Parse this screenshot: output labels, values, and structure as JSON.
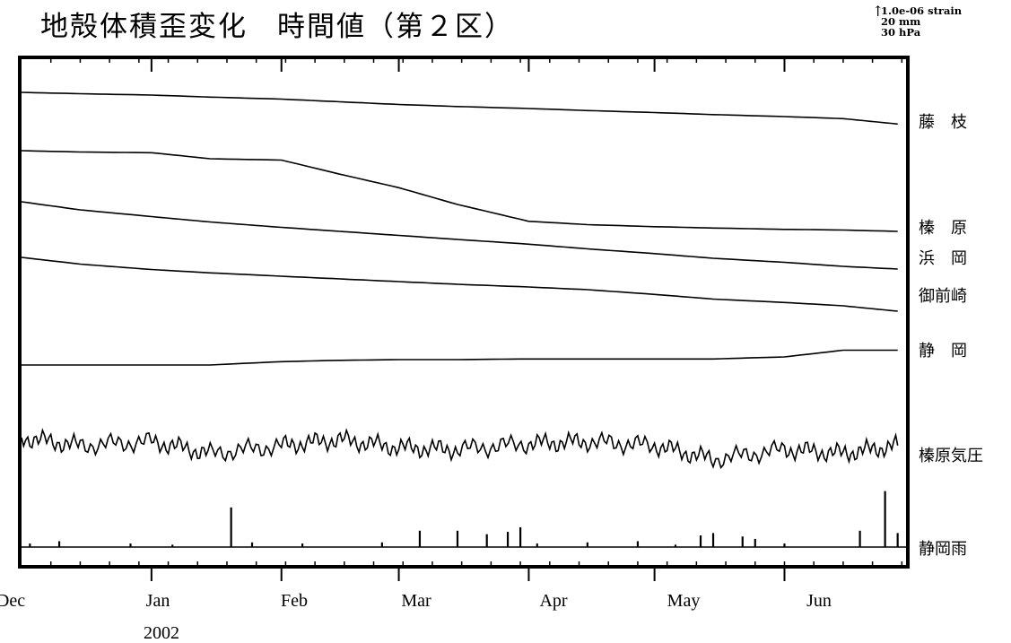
{
  "chart_data": {
    "type": "line",
    "title": "地殻体積歪変化　時間値（第２区）",
    "scale_legend": [
      "1.0e-06 strain",
      "20 mm",
      "30 hPa"
    ],
    "x_tick_labels": [
      "Dec",
      "Jan",
      "Feb",
      "Mar",
      "Apr",
      "May",
      "Jun"
    ],
    "x_sub_label": "2002",
    "x": [
      "2001-12-01",
      "2001-12-15",
      "2002-01-01",
      "2002-01-15",
      "2002-02-01",
      "2002-02-15",
      "2002-03-01",
      "2002-03-15",
      "2002-04-01",
      "2002-04-15",
      "2002-05-01",
      "2002-05-15",
      "2002-06-01",
      "2002-06-15",
      "2002-06-28"
    ],
    "series": [
      {
        "name": "藤　枝",
        "values": [
          0.0,
          -0.02,
          -0.04,
          -0.07,
          -0.1,
          -0.14,
          -0.18,
          -0.21,
          -0.24,
          -0.27,
          -0.3,
          -0.33,
          -0.36,
          -0.39,
          -0.47
        ]
      },
      {
        "name": "榛　原",
        "values": [
          0.0,
          -0.02,
          -0.03,
          -0.12,
          -0.14,
          -0.35,
          -0.55,
          -0.8,
          -1.05,
          -1.1,
          -1.13,
          -1.15,
          -1.17,
          -1.18,
          -1.2
        ]
      },
      {
        "name": "浜　岡",
        "values": [
          0.0,
          -0.12,
          -0.22,
          -0.3,
          -0.38,
          -0.44,
          -0.5,
          -0.56,
          -0.63,
          -0.7,
          -0.77,
          -0.84,
          -0.9,
          -0.96,
          -1.0
        ]
      },
      {
        "name": "御前崎",
        "values": [
          0.0,
          -0.1,
          -0.18,
          -0.23,
          -0.28,
          -0.32,
          -0.36,
          -0.4,
          -0.44,
          -0.48,
          -0.55,
          -0.62,
          -0.67,
          -0.72,
          -0.8
        ]
      },
      {
        "name": "静　岡",
        "values": [
          0.0,
          0.0,
          0.0,
          0.0,
          0.05,
          0.07,
          0.08,
          0.08,
          0.09,
          0.09,
          0.09,
          0.09,
          0.12,
          0.22,
          0.22
        ]
      },
      {
        "name": "榛原気圧",
        "values": [
          1014,
          1010,
          1012,
          1006,
          1010,
          1013,
          1009,
          1008,
          1011,
          1012,
          1010,
          1003,
          1008,
          1006,
          1010
        ]
      }
    ],
    "rain_series": {
      "name": "静岡雨",
      "events": [
        {
          "x": "2001-12-03",
          "mm": 3
        },
        {
          "x": "2001-12-10",
          "mm": 5
        },
        {
          "x": "2001-12-27",
          "mm": 3
        },
        {
          "x": "2002-01-06",
          "mm": 2
        },
        {
          "x": "2002-01-20",
          "mm": 34
        },
        {
          "x": "2002-01-25",
          "mm": 4
        },
        {
          "x": "2002-02-06",
          "mm": 3
        },
        {
          "x": "2002-02-25",
          "mm": 4
        },
        {
          "x": "2002-03-06",
          "mm": 14
        },
        {
          "x": "2002-03-15",
          "mm": 14
        },
        {
          "x": "2002-03-22",
          "mm": 11
        },
        {
          "x": "2002-03-27",
          "mm": 13
        },
        {
          "x": "2002-03-30",
          "mm": 17
        },
        {
          "x": "2002-04-03",
          "mm": 3
        },
        {
          "x": "2002-04-15",
          "mm": 4
        },
        {
          "x": "2002-04-27",
          "mm": 5
        },
        {
          "x": "2002-05-06",
          "mm": 2
        },
        {
          "x": "2002-05-12",
          "mm": 10
        },
        {
          "x": "2002-05-15",
          "mm": 12
        },
        {
          "x": "2002-05-22",
          "mm": 9
        },
        {
          "x": "2002-05-25",
          "mm": 7
        },
        {
          "x": "2002-06-01",
          "mm": 3
        },
        {
          "x": "2002-06-19",
          "mm": 14
        },
        {
          "x": "2002-06-25",
          "mm": 48
        },
        {
          "x": "2002-06-28",
          "mm": 12
        }
      ]
    },
    "grid": false
  }
}
